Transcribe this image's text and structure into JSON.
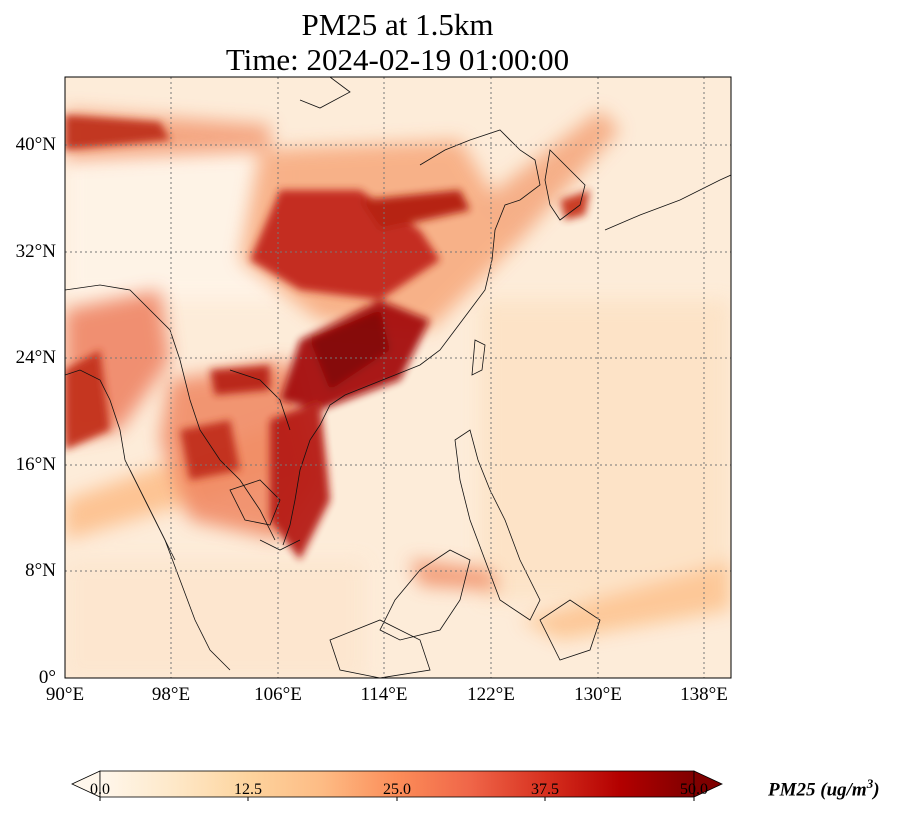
{
  "title_line1": "PM25 at 1.5km",
  "title_line2": "Time: 2024-02-19 01:00:00",
  "lon_ticks": [
    "90°E",
    "98°E",
    "106°E",
    "114°E",
    "122°E",
    "130°E",
    "138°E"
  ],
  "lat_ticks": [
    "40°N",
    "32°N",
    "24°N",
    "16°N",
    "8°N",
    "0°"
  ],
  "extent": {
    "lon_min": 90,
    "lon_max": 140,
    "lat_min": 0,
    "lat_max": 45
  },
  "colorbar": {
    "label": "PM25 (ug/m",
    "label_sup": "3",
    "label_close": ")",
    "ticks": [
      "0.0",
      "12.5",
      "25.0",
      "37.5",
      "50.0"
    ],
    "min": 0,
    "max": 50,
    "extend": "both",
    "colormap": "OrRd",
    "colors": [
      "#fff7ec",
      "#fee8c8",
      "#fdd49e",
      "#fdbb84",
      "#fc8d59",
      "#ef6548",
      "#d7301f",
      "#b30000",
      "#7f0000"
    ]
  },
  "grid": "dotted"
}
